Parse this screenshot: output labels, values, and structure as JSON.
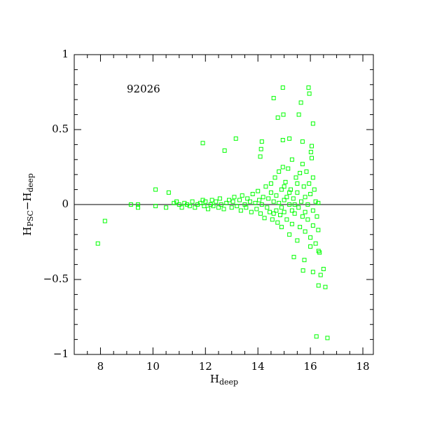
{
  "chart_data": {
    "type": "scatter",
    "annotation": "92026",
    "x_label": [
      "H",
      "deep"
    ],
    "y_label": [
      "H",
      "PSC",
      "−H",
      "deep"
    ],
    "xlim": [
      7,
      18.4
    ],
    "ylim": [
      -1,
      1
    ],
    "xticks": [
      8,
      10,
      12,
      14,
      16,
      18
    ],
    "xminorticks": [
      7.5,
      8.5,
      9,
      9.5,
      10.5,
      11,
      11.5,
      12.5,
      13,
      13.5,
      14.5,
      15,
      15.5,
      16.5,
      17,
      17.5
    ],
    "yticks": [
      {
        "value": -1,
        "label": "−1"
      },
      {
        "value": -0.5,
        "label": "−0.5"
      },
      0,
      0.5,
      1
    ],
    "yminorticks": [
      -0.9,
      -0.8,
      -0.7,
      -0.6,
      -0.4,
      -0.3,
      -0.2,
      -0.1,
      0.1,
      0.2,
      0.3,
      0.4,
      0.6,
      0.7,
      0.8,
      0.9
    ],
    "hline": 0,
    "color": "#00ff00",
    "x": [
      7.9,
      8.17,
      9.16,
      9.43,
      9.43,
      10.1,
      10.1,
      10.6,
      10.5,
      10.8,
      10.9,
      11.9,
      12.73,
      13.16,
      14.95,
      14.6,
      15.93,
      15.96,
      14.76,
      14.97,
      15.56,
      15.64,
      16.1,
      14.15,
      14.12,
      14.09,
      14.95,
      15.2,
      15.7,
      16.05,
      16.02,
      16.23,
      16.65,
      16.57,
      16.31,
      16.1,
      16.39,
      16.5,
      16.31,
      16.35,
      15.72,
      15.77,
      15.37,
      16.0,
      11.0,
      11.1,
      11.2,
      11.3,
      11.4,
      11.5,
      11.6,
      11.7,
      11.8,
      11.9,
      11.95,
      12.0,
      12.1,
      12.2,
      12.25,
      12.3,
      12.4,
      12.5,
      12.55,
      12.6,
      12.7,
      12.8,
      12.9,
      13.0,
      13.05,
      13.1,
      13.2,
      13.3,
      13.35,
      13.4,
      13.5,
      13.55,
      13.6,
      13.7,
      13.75,
      13.8,
      13.9,
      13.95,
      14.0,
      14.05,
      14.1,
      14.15,
      14.2,
      14.25,
      14.3,
      14.35,
      14.4,
      14.45,
      14.5,
      14.5,
      14.55,
      14.6,
      14.65,
      14.7,
      14.7,
      14.75,
      14.8,
      14.8,
      14.85,
      14.9,
      14.9,
      14.95,
      15.0,
      15.0,
      15.05,
      15.1,
      15.1,
      15.15,
      15.2,
      15.2,
      15.25,
      15.3,
      15.3,
      15.35,
      15.4,
      15.45,
      15.5,
      15.5,
      15.55,
      15.6,
      15.6,
      15.65,
      15.7,
      15.7,
      15.75,
      15.8,
      15.8,
      15.85,
      15.9,
      15.9,
      15.95,
      16.0,
      16.0,
      16.05,
      16.1,
      16.1,
      16.15,
      16.2,
      16.2,
      16.25,
      16.3,
      16.3,
      15.0,
      14.9,
      15.2,
      15.4,
      14.6,
      15.8,
      16.1,
      15.5,
      15.3
    ],
    "y": [
      -0.26,
      -0.11,
      0.0,
      0.0,
      -0.02,
      0.1,
      -0.01,
      0.08,
      -0.02,
      0.01,
      0.02,
      0.41,
      0.36,
      0.44,
      0.78,
      0.71,
      0.78,
      0.74,
      0.58,
      0.6,
      0.6,
      0.68,
      0.54,
      0.42,
      0.37,
      0.32,
      0.43,
      0.44,
      0.42,
      0.39,
      0.35,
      -0.88,
      -0.89,
      -0.55,
      -0.54,
      -0.45,
      -0.47,
      -0.43,
      -0.31,
      -0.32,
      -0.44,
      -0.37,
      -0.35,
      -0.28,
      0.0,
      -0.02,
      0.01,
      0.0,
      -0.01,
      0.02,
      -0.02,
      0.0,
      0.01,
      0.03,
      -0.01,
      0.02,
      -0.03,
      0.0,
      0.03,
      -0.01,
      0.02,
      -0.02,
      0.04,
      0.0,
      -0.03,
      0.01,
      0.03,
      -0.02,
      0.02,
      0.05,
      -0.01,
      0.03,
      -0.04,
      0.06,
      0.0,
      -0.02,
      0.04,
      0.02,
      -0.05,
      0.07,
      0.01,
      -0.03,
      0.09,
      0.03,
      -0.06,
      0.0,
      0.05,
      -0.09,
      0.12,
      -0.02,
      0.04,
      -0.05,
      0.14,
      0.08,
      -0.1,
      0.02,
      0.18,
      -0.04,
      0.06,
      -0.12,
      0.22,
      0.01,
      -0.07,
      0.1,
      -0.15,
      0.25,
      0.03,
      -0.05,
      0.15,
      -0.1,
      0.05,
      0.24,
      -0.2,
      0.0,
      0.1,
      -0.13,
      0.3,
      0.04,
      -0.06,
      0.18,
      -0.24,
      0.08,
      -0.02,
      0.21,
      -0.15,
      0.02,
      0.27,
      -0.08,
      0.12,
      -0.18,
      0.05,
      0.22,
      -0.1,
      0.0,
      0.14,
      -0.22,
      0.07,
      0.31,
      -0.04,
      -0.14,
      0.1,
      -0.26,
      0.02,
      -0.08,
      0.01,
      -0.17,
      0.12,
      -0.02,
      0.08,
      0.0,
      -0.06,
      -0.05,
      0.18,
      0.14,
      -0.04
    ]
  }
}
